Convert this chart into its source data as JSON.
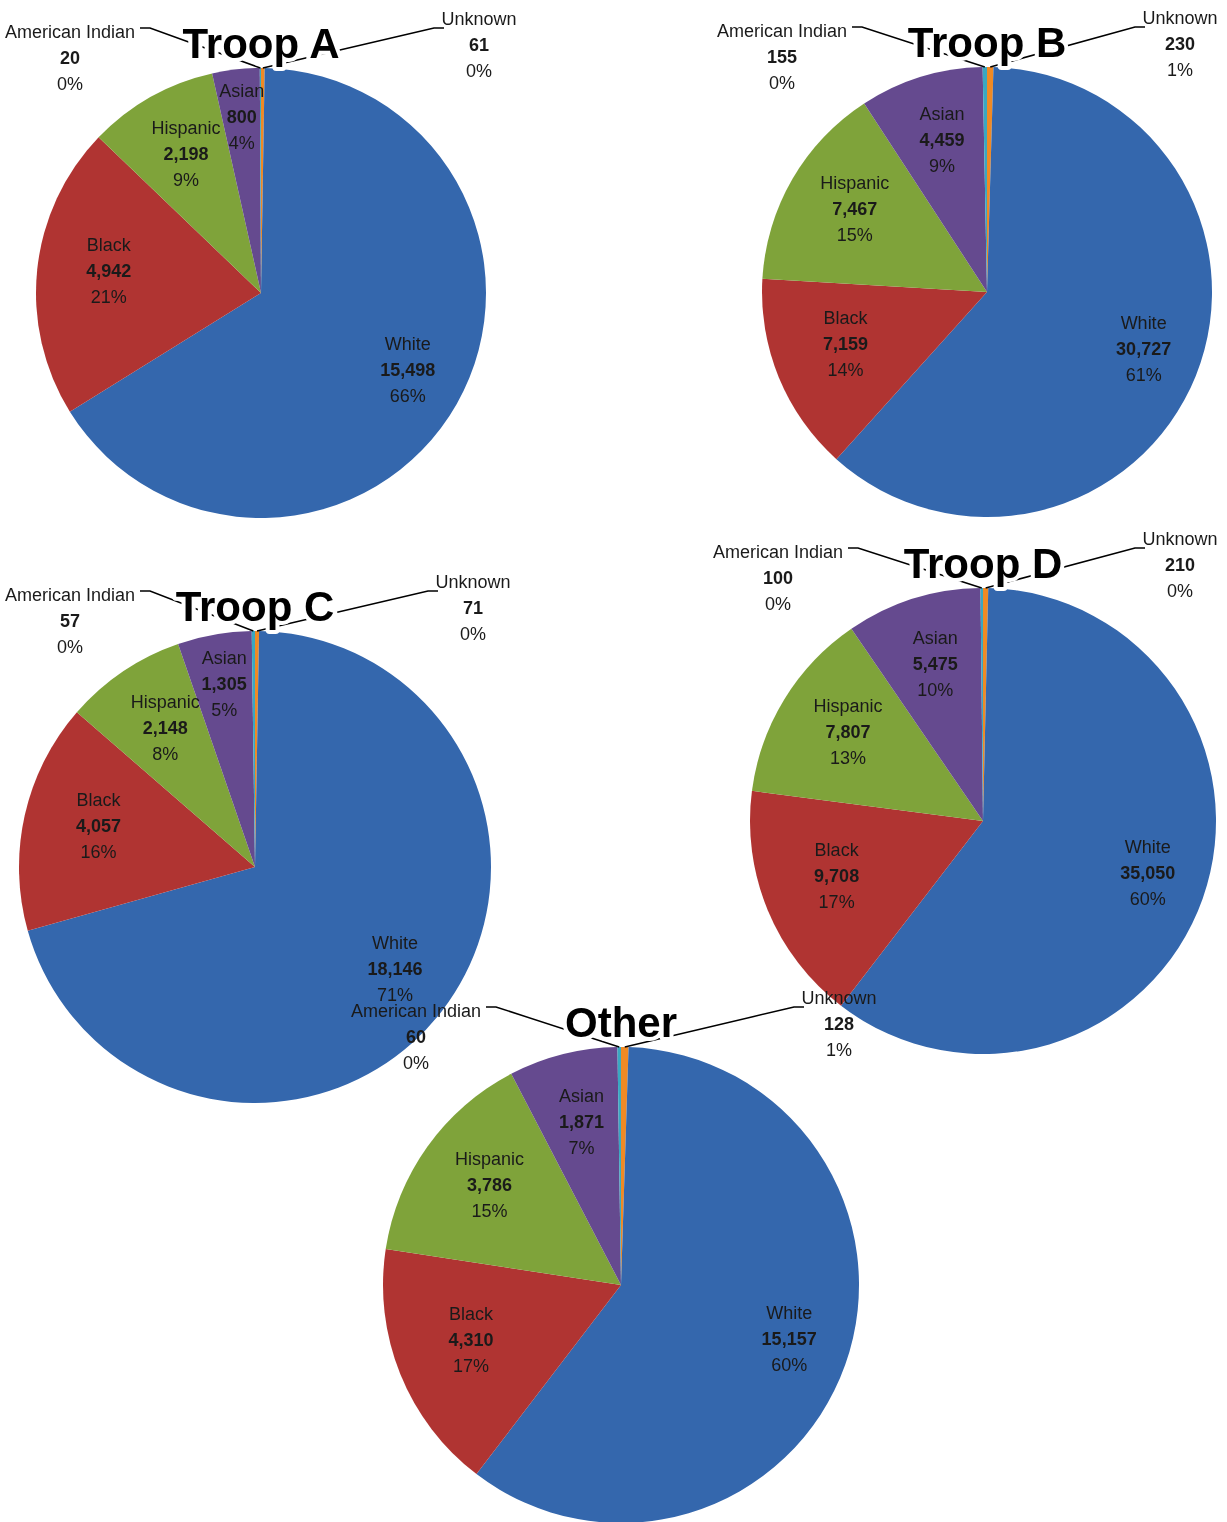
{
  "chart_data": [
    {
      "type": "pie",
      "title": "Troop A",
      "categories": [
        "Unknown",
        "White",
        "Black",
        "Hispanic",
        "Asian",
        "American Indian"
      ],
      "values": [
        61,
        15498,
        4942,
        2198,
        800,
        20
      ],
      "value_labels": [
        "61\n0%",
        "15,498\n66%",
        "4,942\n21%",
        "2,198\n9%",
        "800\n4%",
        "20\n0%"
      ],
      "colors": [
        "#f08a24",
        "#3467ad",
        "#b03432",
        "#7fa33a",
        "#654a8f",
        "#3aa8c1"
      ]
    },
    {
      "type": "pie",
      "title": "Troop B",
      "categories": [
        "Unknown",
        "White",
        "Black",
        "Hispanic",
        "Asian",
        "American Indian"
      ],
      "values": [
        230,
        30727,
        7159,
        7467,
        4459,
        155
      ],
      "value_labels": [
        "230\n1%",
        "30,727\n61%",
        "7,159\n14%",
        "7,467\n15%",
        "4,459\n9%",
        "155\n0%"
      ],
      "colors": [
        "#f08a24",
        "#3467ad",
        "#b03432",
        "#7fa33a",
        "#654a8f",
        "#3aa8c1"
      ]
    },
    {
      "type": "pie",
      "title": "Troop C",
      "categories": [
        "Unknown",
        "White",
        "Black",
        "Hispanic",
        "Asian",
        "American Indian"
      ],
      "values": [
        71,
        18146,
        4057,
        2148,
        1305,
        57
      ],
      "value_labels": [
        "71\n0%",
        "18,146\n71%",
        "4,057\n16%",
        "2,148\n8%",
        "1,305\n5%",
        "57\n0%"
      ],
      "colors": [
        "#f08a24",
        "#3467ad",
        "#b03432",
        "#7fa33a",
        "#654a8f",
        "#3aa8c1"
      ]
    },
    {
      "type": "pie",
      "title": "Troop D",
      "categories": [
        "Unknown",
        "White",
        "Black",
        "Hispanic",
        "Asian",
        "American Indian"
      ],
      "values": [
        210,
        35050,
        9708,
        7807,
        5475,
        100
      ],
      "value_labels": [
        "210\n0%",
        "35,050\n60%",
        "9,708\n17%",
        "7,807\n13%",
        "5,475\n10%",
        "100\n0%"
      ],
      "colors": [
        "#f08a24",
        "#3467ad",
        "#b03432",
        "#7fa33a",
        "#654a8f",
        "#3aa8c1"
      ]
    },
    {
      "type": "pie",
      "title": "Other",
      "categories": [
        "Unknown",
        "White",
        "Black",
        "Hispanic",
        "Asian",
        "American Indian"
      ],
      "values": [
        128,
        15157,
        4310,
        3786,
        1871,
        60
      ],
      "value_labels": [
        "128\n1%",
        "15,157\n60%",
        "4,310\n17%",
        "3,786\n15%",
        "1,871\n7%",
        "60\n0%"
      ],
      "colors": [
        "#f08a24",
        "#3467ad",
        "#b03432",
        "#7fa33a",
        "#654a8f",
        "#3aa8c1"
      ]
    }
  ]
}
